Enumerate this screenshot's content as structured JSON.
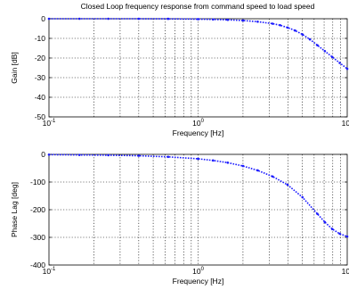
{
  "chart_data": [
    {
      "type": "line",
      "title": "Closed Loop frequency response from command speed to load speed",
      "xlabel": "Frequency [Hz]",
      "ylabel": "Gain [dB]",
      "xscale": "log",
      "xlim": [
        0.1,
        10
      ],
      "ylim": [
        -50,
        0
      ],
      "x_ticks": [
        {
          "base": "10",
          "exp": "-1"
        },
        {
          "base": "10",
          "exp": "0"
        },
        {
          "base": "10",
          "exp": "1"
        }
      ],
      "y_ticks": [
        "0",
        "-10",
        "-20",
        "-30",
        "-40",
        "-50"
      ],
      "grid": true,
      "color": "#1c1cff",
      "series": [
        {
          "x": [
            0.1,
            0.16,
            0.25,
            0.4,
            0.63,
            1.0,
            1.26,
            1.58,
            2.0,
            2.51,
            3.16,
            3.55,
            3.98,
            4.47,
            5.01,
            5.62,
            6.31,
            7.08,
            7.94,
            8.91,
            10.0
          ],
          "y": [
            0,
            0,
            0,
            0,
            -0.05,
            -0.2,
            -0.35,
            -0.55,
            -0.9,
            -1.5,
            -2.5,
            -3.3,
            -4.5,
            -6.0,
            -8.0,
            -10.5,
            -13.5,
            -16.5,
            -19.5,
            -22.5,
            -25.5
          ]
        }
      ]
    },
    {
      "type": "line",
      "title": "",
      "xlabel": "Frequency [Hz]",
      "ylabel": "Phase Lag [deg]",
      "xscale": "log",
      "xlim": [
        0.1,
        10
      ],
      "ylim": [
        -400,
        0
      ],
      "x_ticks": [
        {
          "base": "10",
          "exp": "-1"
        },
        {
          "base": "10",
          "exp": "0"
        },
        {
          "base": "10",
          "exp": "1"
        }
      ],
      "y_ticks": [
        "0",
        "-100",
        "-200",
        "-300",
        "-400"
      ],
      "grid": true,
      "color": "#1c1cff",
      "series": [
        {
          "x": [
            0.1,
            0.16,
            0.25,
            0.4,
            0.63,
            1.0,
            1.26,
            1.58,
            2.0,
            2.51,
            3.16,
            3.98,
            5.01,
            6.31,
            7.08,
            7.94,
            8.91,
            10.0
          ],
          "y": [
            -1,
            -2,
            -3,
            -5,
            -9,
            -16,
            -22,
            -30,
            -42,
            -58,
            -80,
            -110,
            -155,
            -215,
            -245,
            -270,
            -287,
            -297
          ]
        }
      ]
    }
  ]
}
